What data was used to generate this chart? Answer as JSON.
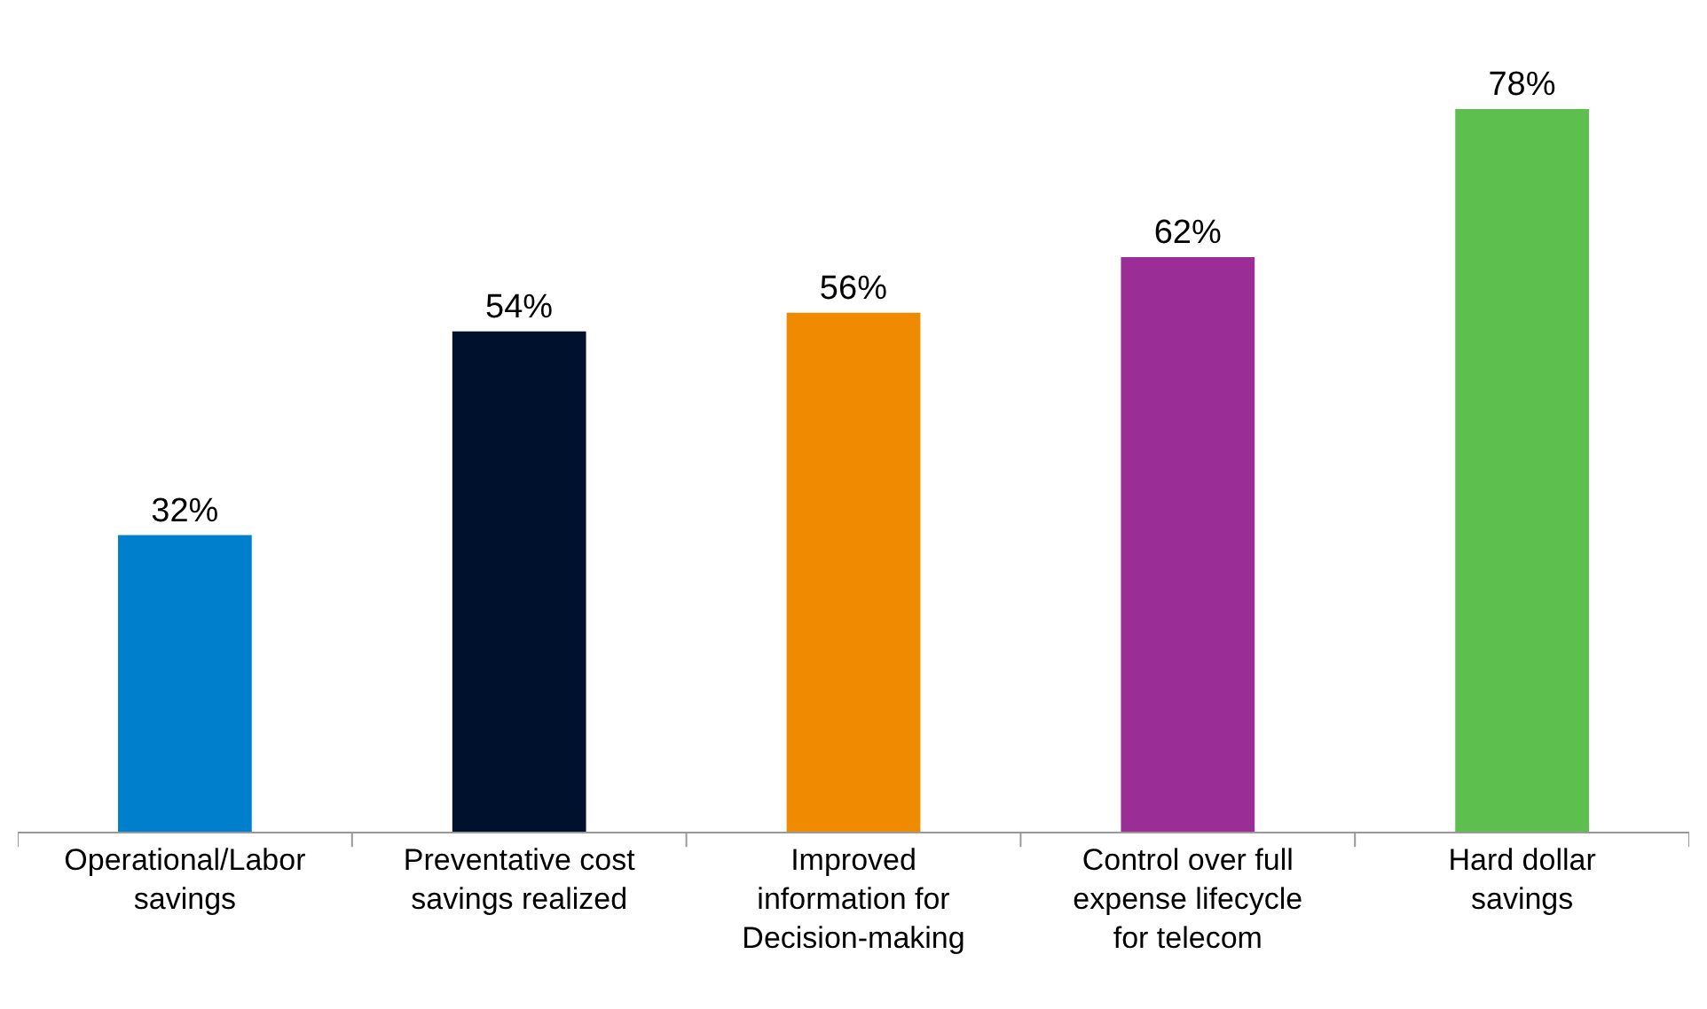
{
  "chart_data": {
    "type": "bar",
    "categories": [
      "Operational/Labor\nsavings",
      "Preventative cost\nsavings realized",
      "Improved\ninformation for\nDecision-making",
      "Control over full\nexpense lifecycle\nfor telecom",
      "Hard dollar\nsavings"
    ],
    "values": [
      32,
      54,
      56,
      62,
      78
    ],
    "colors": [
      "#0080cc",
      "#00112e",
      "#f08a00",
      "#9b2d96",
      "#5dbf4e"
    ],
    "value_labels": [
      "32%",
      "54%",
      "56%",
      "62%",
      "78%"
    ],
    "tick_labels": "x"
  }
}
